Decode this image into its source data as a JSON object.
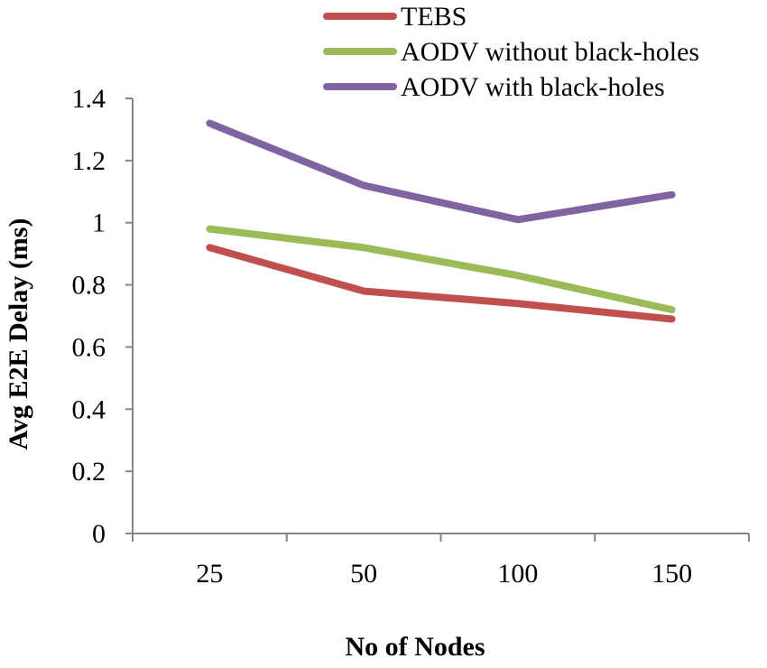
{
  "chart_data": {
    "type": "line",
    "title": "",
    "xlabel": "No of Nodes",
    "ylabel": "Avg E2E Delay (ms)",
    "categories": [
      "25",
      "50",
      "100",
      "150"
    ],
    "ylim": [
      0,
      1.4
    ],
    "yticks": [
      "0",
      "0.2",
      "0.4",
      "0.6",
      "0.8",
      "1",
      "1.2",
      "1.4"
    ],
    "grid": false,
    "legend_position": "top-right",
    "series": [
      {
        "name": "TEBS",
        "color": "#c0504d",
        "values": [
          0.92,
          0.78,
          0.74,
          0.69
        ]
      },
      {
        "name": "AODV without black-holes",
        "color": "#9bbb59",
        "values": [
          0.98,
          0.92,
          0.83,
          0.72
        ]
      },
      {
        "name": "AODV with black-holes",
        "color": "#8064a2",
        "values": [
          1.32,
          1.12,
          1.01,
          1.09
        ]
      }
    ]
  }
}
